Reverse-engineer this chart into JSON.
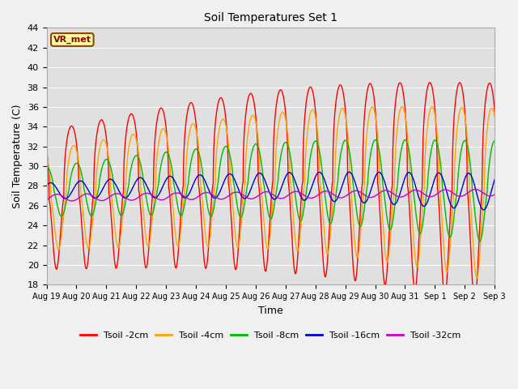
{
  "title": "Soil Temperatures Set 1",
  "xlabel": "Time",
  "ylabel": "Soil Temperature (C)",
  "ylim": [
    18,
    44
  ],
  "yticks": [
    18,
    20,
    22,
    24,
    26,
    28,
    30,
    32,
    34,
    36,
    38,
    40,
    42,
    44
  ],
  "plot_bg_color": "#e0e0e0",
  "fig_bg_color": "#f0f0f0",
  "grid_color": "#ffffff",
  "annotation_text": "VR_met",
  "annotation_bg": "#ffff99",
  "annotation_border": "#8b4513",
  "lines": [
    {
      "label": "Tsoil -2cm",
      "color": "#ff0000",
      "lw": 1.0
    },
    {
      "label": "Tsoil -4cm",
      "color": "#ffa500",
      "lw": 1.0
    },
    {
      "label": "Tsoil -8cm",
      "color": "#00bb00",
      "lw": 1.0
    },
    {
      "label": "Tsoil -16cm",
      "color": "#0000cc",
      "lw": 1.0
    },
    {
      "label": "Tsoil -32cm",
      "color": "#cc00cc",
      "lw": 1.0
    }
  ],
  "x_tick_labels": [
    "Aug 19",
    "Aug 20",
    "Aug 21",
    "Aug 22",
    "Aug 23",
    "Aug 24",
    "Aug 25",
    "Aug 26",
    "Aug 27",
    "Aug 28",
    "Aug 29",
    "Aug 30",
    "Aug 31",
    "Sep 1",
    "Sep 2",
    "Sep 3"
  ],
  "n_points": 1440,
  "n_days": 15
}
